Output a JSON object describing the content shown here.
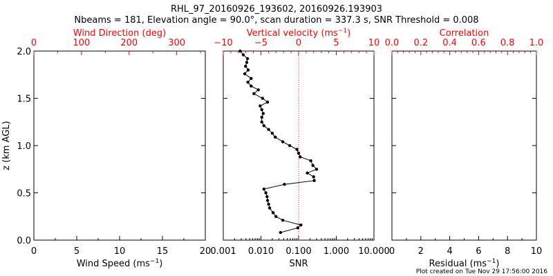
{
  "header": {
    "title": "RHL_97_20160926_193602, 20160926.193903",
    "subtitle": "Nbeams = 181, Elevation angle = 90.0°, scan duration = 337.3 s, SNR Threshold = 0.008"
  },
  "footer": {
    "plot_created": "Plot created on Tue Nov 29 17:56:00 2016"
  },
  "colors": {
    "axis": "#000000",
    "top_axis": "#ff0000",
    "data": "#000000",
    "ref_line": "#ff0000"
  },
  "chart_data": [
    {
      "type": "line",
      "panel": "left",
      "ylabel": "z (km AGL)",
      "ylim": [
        0,
        2
      ],
      "yticks": [
        0.0,
        0.5,
        1.0,
        1.5,
        2.0
      ],
      "ytick_labels": [
        "0.0",
        "0.5",
        "1.0",
        "1.5",
        "2.0"
      ],
      "xlabel_bottom": "Wind Speed (ms",
      "xlabel_bottom_sup": "−1",
      "xlabel_bottom_end": ")",
      "xlim_bottom": [
        0,
        20
      ],
      "xticks_bottom": [
        "0",
        "5",
        "10",
        "15",
        "20"
      ],
      "xlabel_top": "Wind Direction (deg)",
      "xlim_top": [
        0,
        360
      ],
      "xticks_top": [
        "0",
        "100",
        "200",
        "300"
      ],
      "series": []
    },
    {
      "type": "line",
      "panel": "middle",
      "ylim": [
        0,
        2
      ],
      "xlabel_bottom": "SNR",
      "xscale_bottom": "log",
      "xlim_bottom": [
        0.001,
        10
      ],
      "xticks_bottom": [
        "0.001",
        "0.010",
        "0.100",
        "1.000",
        "10.000"
      ],
      "xlabel_top": "Vertical velocity (ms",
      "xlabel_top_sup": "−1",
      "xlabel_top_end": ")",
      "xlim_top": [
        -10,
        10
      ],
      "xticks_top": [
        "−10",
        "−5",
        "0",
        "5",
        "10"
      ],
      "reference_line_snr": 0.1,
      "series": [
        {
          "axis": "bottom",
          "z": [
            0.08,
            0.13,
            0.16,
            0.21,
            0.25,
            0.29,
            0.34,
            0.38,
            0.42,
            0.46,
            0.5,
            0.54,
            0.59,
            0.63,
            0.67,
            0.71,
            0.75,
            0.79,
            0.84,
            0.88,
            0.92,
            0.96,
            1.0,
            1.04,
            1.09,
            1.13,
            1.17,
            1.21,
            1.25,
            1.3,
            1.34,
            1.38,
            1.42,
            1.46,
            1.5,
            1.55,
            1.59,
            1.63,
            1.67,
            1.71,
            1.76,
            1.8,
            1.84,
            1.88,
            1.92,
            1.96,
            2.0
          ],
          "snr": [
            0.033,
            0.095,
            0.115,
            0.038,
            0.025,
            0.021,
            0.017,
            0.016,
            0.015,
            0.0145,
            0.0135,
            0.012,
            0.042,
            0.26,
            0.25,
            0.17,
            0.3,
            0.24,
            0.21,
            0.11,
            0.1,
            0.09,
            0.058,
            0.038,
            0.024,
            0.02,
            0.016,
            0.012,
            0.0105,
            0.0105,
            0.0115,
            0.0105,
            0.0095,
            0.015,
            0.011,
            0.0065,
            0.0085,
            0.0055,
            0.0045,
            0.0055,
            0.0037,
            0.0046,
            0.0039,
            0.0042,
            0.0044,
            0.0034,
            0.0028
          ]
        }
      ]
    },
    {
      "type": "line",
      "panel": "right",
      "ylim": [
        0,
        2
      ],
      "xlabel_bottom": "Residual (ms",
      "xlabel_bottom_sup": "−1",
      "xlabel_bottom_end": ")",
      "xlim_bottom": [
        0,
        10
      ],
      "xticks_bottom": [
        "0",
        "2",
        "4",
        "6",
        "8",
        "10"
      ],
      "xlabel_top": "Correlation",
      "xlim_top": [
        0,
        1
      ],
      "xticks_top": [
        "0.0",
        "0.2",
        "0.4",
        "0.6",
        "0.8",
        "1.0"
      ],
      "series": []
    }
  ]
}
